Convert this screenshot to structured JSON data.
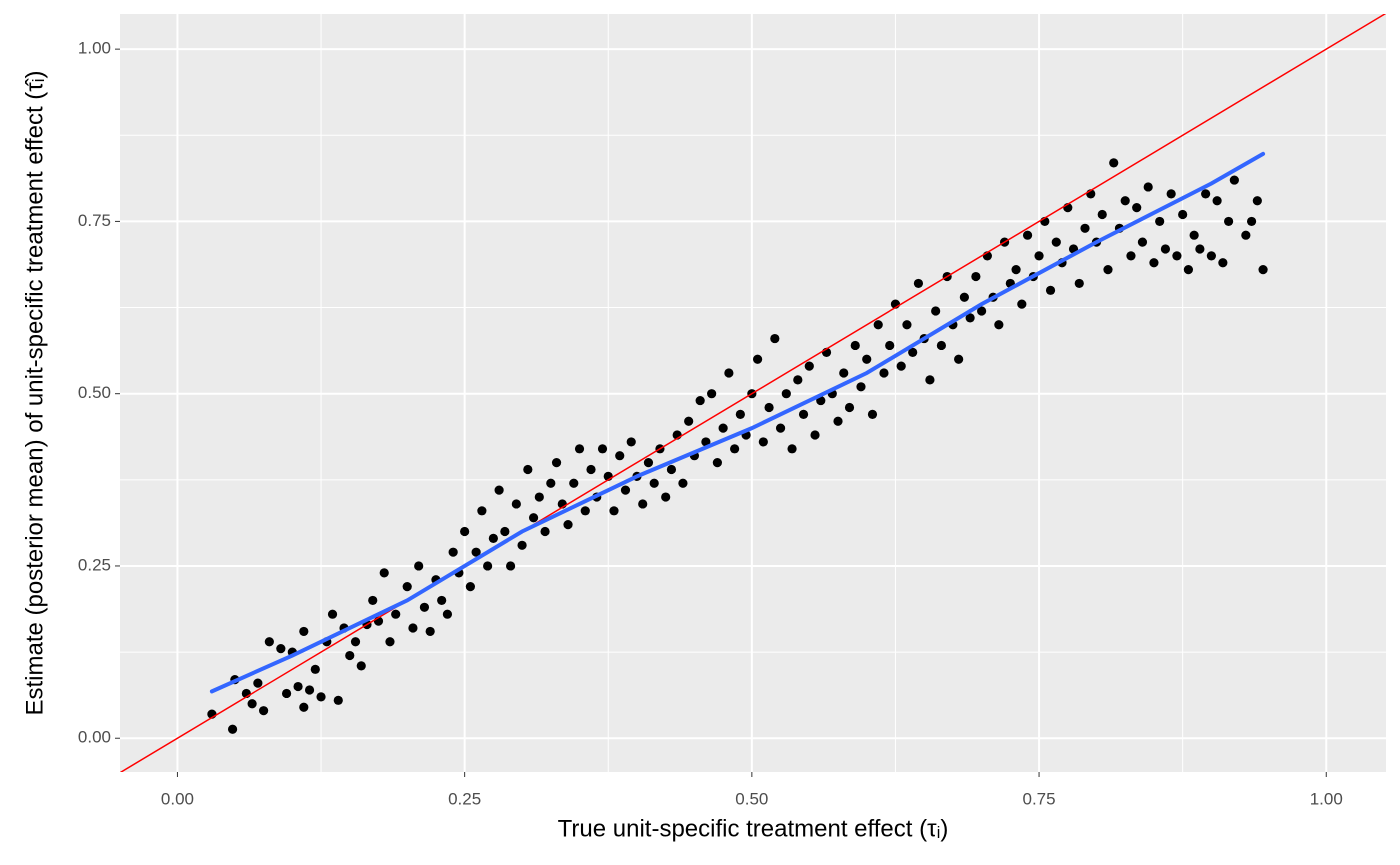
{
  "chart_data": {
    "type": "scatter",
    "x_label": "True unit-specific treatment effect (τᵢ)",
    "y_label": "Estimate (posterior mean) of unit-specific treatment effect (τ̂ᵢ)",
    "xlim": [
      -0.05,
      1.052
    ],
    "ylim": [
      -0.049,
      1.051
    ],
    "xticks": [
      {
        "value": 0,
        "label": "0.00"
      },
      {
        "value": 0.25,
        "label": "0.25"
      },
      {
        "value": 0.5,
        "label": "0.50"
      },
      {
        "value": 0.75,
        "label": "0.75"
      },
      {
        "value": 1,
        "label": "1.00"
      }
    ],
    "yticks": [
      {
        "value": 0,
        "label": "0.00"
      },
      {
        "value": 0.25,
        "label": "0.25"
      },
      {
        "value": 0.5,
        "label": "0.50"
      },
      {
        "value": 0.75,
        "label": "0.75"
      },
      {
        "value": 1,
        "label": "1.00"
      }
    ],
    "minor_xticks": [
      0.125,
      0.375,
      0.625,
      0.875
    ],
    "minor_yticks": [
      0.125,
      0.375,
      0.625,
      0.875
    ],
    "grid": true,
    "points": {
      "color": "#000000",
      "x": [
        0.03,
        0.048,
        0.05,
        0.06,
        0.065,
        0.07,
        0.075,
        0.08,
        0.09,
        0.095,
        0.1,
        0.105,
        0.11,
        0.11,
        0.115,
        0.12,
        0.125,
        0.13,
        0.135,
        0.14,
        0.145,
        0.15,
        0.155,
        0.16,
        0.165,
        0.17,
        0.175,
        0.18,
        0.185,
        0.19,
        0.2,
        0.205,
        0.21,
        0.215,
        0.22,
        0.225,
        0.23,
        0.235,
        0.24,
        0.245,
        0.25,
        0.255,
        0.26,
        0.265,
        0.27,
        0.275,
        0.28,
        0.285,
        0.29,
        0.295,
        0.3,
        0.305,
        0.31,
        0.315,
        0.32,
        0.325,
        0.33,
        0.335,
        0.34,
        0.345,
        0.35,
        0.355,
        0.36,
        0.365,
        0.37,
        0.375,
        0.38,
        0.385,
        0.39,
        0.395,
        0.4,
        0.405,
        0.41,
        0.415,
        0.42,
        0.425,
        0.43,
        0.435,
        0.44,
        0.445,
        0.45,
        0.455,
        0.46,
        0.465,
        0.47,
        0.475,
        0.48,
        0.485,
        0.49,
        0.495,
        0.5,
        0.505,
        0.51,
        0.515,
        0.52,
        0.525,
        0.53,
        0.535,
        0.54,
        0.545,
        0.55,
        0.555,
        0.56,
        0.565,
        0.57,
        0.575,
        0.58,
        0.585,
        0.59,
        0.595,
        0.6,
        0.605,
        0.61,
        0.615,
        0.62,
        0.625,
        0.63,
        0.635,
        0.64,
        0.645,
        0.65,
        0.655,
        0.66,
        0.665,
        0.67,
        0.675,
        0.68,
        0.685,
        0.69,
        0.695,
        0.7,
        0.705,
        0.71,
        0.715,
        0.72,
        0.725,
        0.73,
        0.735,
        0.74,
        0.745,
        0.75,
        0.755,
        0.76,
        0.765,
        0.77,
        0.775,
        0.78,
        0.785,
        0.79,
        0.795,
        0.8,
        0.805,
        0.81,
        0.815,
        0.82,
        0.825,
        0.83,
        0.835,
        0.84,
        0.845,
        0.85,
        0.855,
        0.86,
        0.865,
        0.87,
        0.875,
        0.88,
        0.885,
        0.89,
        0.895,
        0.9,
        0.905,
        0.91,
        0.915,
        0.92,
        0.93,
        0.935,
        0.94,
        0.945
      ],
      "y": [
        0.035,
        0.013,
        0.085,
        0.065,
        0.05,
        0.08,
        0.04,
        0.14,
        0.13,
        0.065,
        0.125,
        0.075,
        0.155,
        0.045,
        0.07,
        0.1,
        0.06,
        0.14,
        0.18,
        0.055,
        0.16,
        0.12,
        0.14,
        0.105,
        0.165,
        0.2,
        0.17,
        0.24,
        0.14,
        0.18,
        0.22,
        0.16,
        0.25,
        0.19,
        0.155,
        0.23,
        0.2,
        0.18,
        0.27,
        0.24,
        0.3,
        0.22,
        0.27,
        0.33,
        0.25,
        0.29,
        0.36,
        0.3,
        0.25,
        0.34,
        0.28,
        0.39,
        0.32,
        0.35,
        0.3,
        0.37,
        0.4,
        0.34,
        0.31,
        0.37,
        0.42,
        0.33,
        0.39,
        0.35,
        0.42,
        0.38,
        0.33,
        0.41,
        0.36,
        0.43,
        0.38,
        0.34,
        0.4,
        0.37,
        0.42,
        0.35,
        0.39,
        0.44,
        0.37,
        0.46,
        0.41,
        0.49,
        0.43,
        0.5,
        0.4,
        0.45,
        0.53,
        0.42,
        0.47,
        0.44,
        0.5,
        0.55,
        0.43,
        0.48,
        0.58,
        0.45,
        0.5,
        0.42,
        0.52,
        0.47,
        0.54,
        0.44,
        0.49,
        0.56,
        0.5,
        0.46,
        0.53,
        0.48,
        0.57,
        0.51,
        0.55,
        0.47,
        0.6,
        0.53,
        0.57,
        0.63,
        0.54,
        0.6,
        0.56,
        0.66,
        0.58,
        0.52,
        0.62,
        0.57,
        0.67,
        0.6,
        0.55,
        0.64,
        0.61,
        0.67,
        0.62,
        0.7,
        0.64,
        0.6,
        0.72,
        0.66,
        0.68,
        0.63,
        0.73,
        0.67,
        0.7,
        0.75,
        0.65,
        0.72,
        0.69,
        0.77,
        0.71,
        0.66,
        0.74,
        0.79,
        0.72,
        0.76,
        0.68,
        0.835,
        0.74,
        0.78,
        0.7,
        0.77,
        0.72,
        0.8,
        0.69,
        0.75,
        0.71,
        0.79,
        0.7,
        0.76,
        0.68,
        0.73,
        0.71,
        0.79,
        0.7,
        0.78,
        0.69,
        0.75,
        0.81,
        0.73,
        0.75,
        0.78,
        0.68
      ]
    },
    "lines": [
      {
        "color": "#ff0000",
        "x": [
          -0.05,
          1.052
        ],
        "y": [
          -0.05,
          1.052
        ]
      },
      {
        "color": "#3366ff",
        "x": [
          0.03,
          0.1,
          0.2,
          0.3,
          0.4,
          0.5,
          0.6,
          0.7,
          0.8,
          0.9,
          0.945
        ],
        "y": [
          0.068,
          0.12,
          0.2,
          0.3,
          0.38,
          0.45,
          0.53,
          0.63,
          0.72,
          0.805,
          0.848
        ]
      }
    ]
  }
}
